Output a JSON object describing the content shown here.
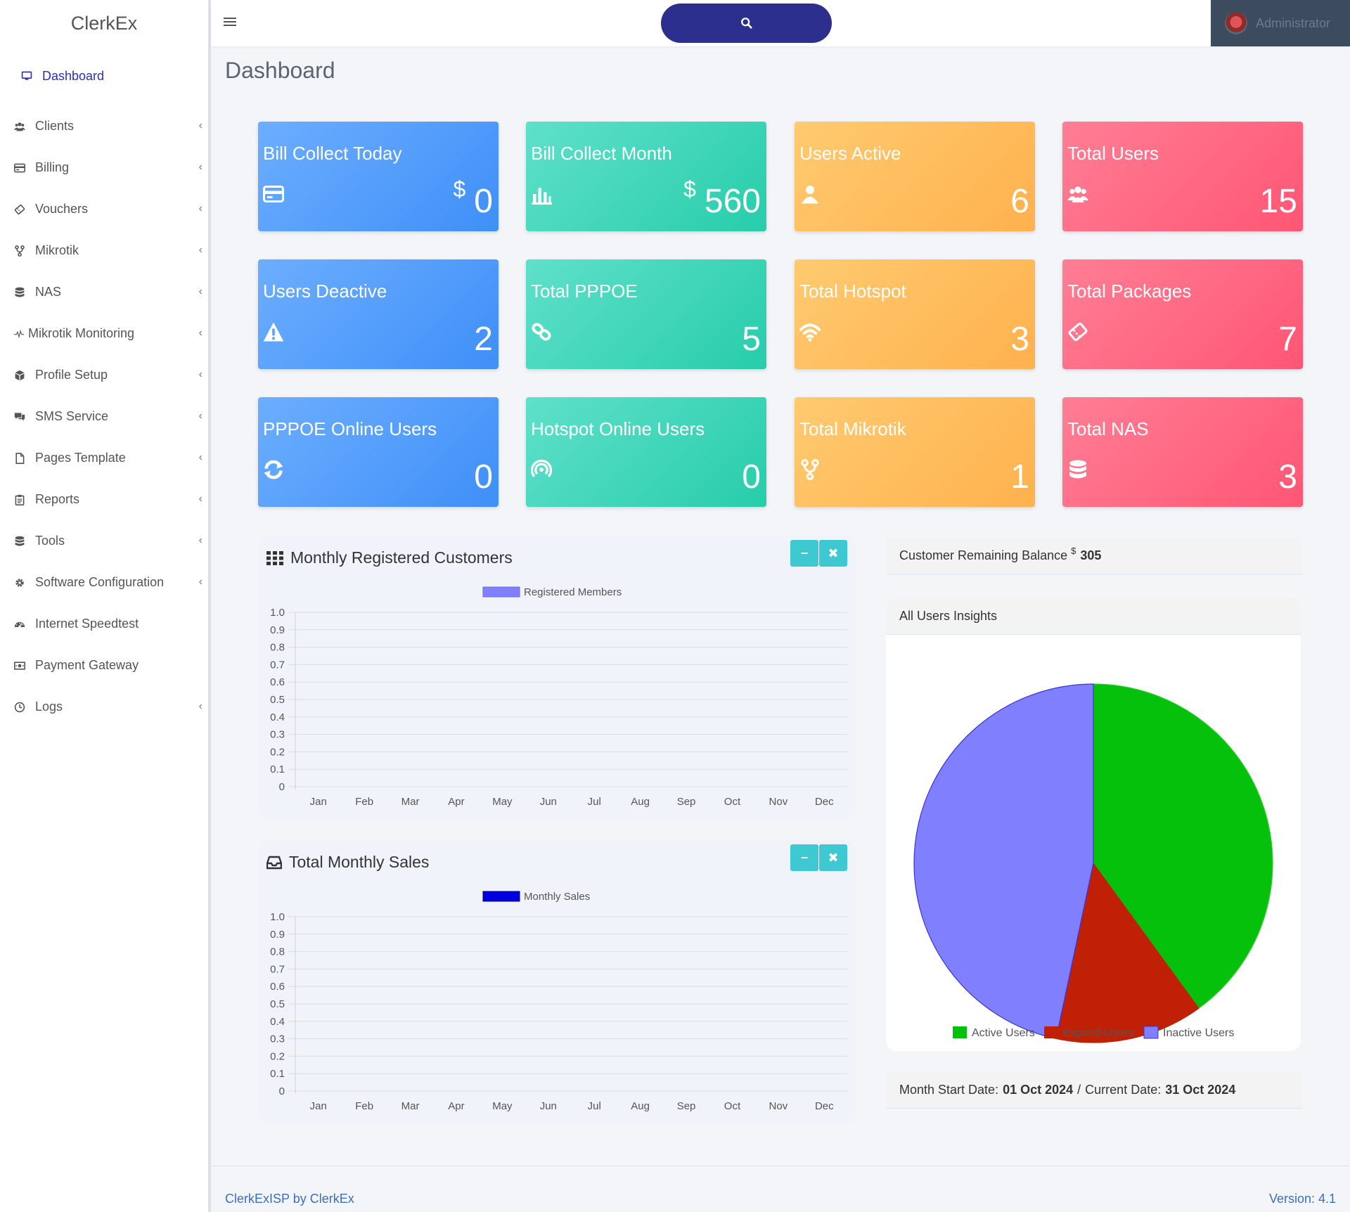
{
  "app": {
    "brand": "ClerkEx",
    "user": "Administrator"
  },
  "sidebar": {
    "items": [
      {
        "label": "Dashboard",
        "icon": "monitor-icon",
        "active": true,
        "has_children": false
      },
      {
        "label": "Clients",
        "icon": "users-icon",
        "has_children": true
      },
      {
        "label": "Billing",
        "icon": "credit-card-icon",
        "has_children": true
      },
      {
        "label": "Vouchers",
        "icon": "ticket-icon",
        "has_children": true
      },
      {
        "label": "Mikrotik",
        "icon": "branch-icon",
        "has_children": true
      },
      {
        "label": "NAS",
        "icon": "database-icon",
        "has_children": true
      },
      {
        "label": "Mikrotik Monitoring",
        "icon": "pulse-icon",
        "has_children": true
      },
      {
        "label": "Profile Setup",
        "icon": "cube-icon",
        "has_children": true
      },
      {
        "label": "SMS Service",
        "icon": "chat-icon",
        "has_children": true
      },
      {
        "label": "Pages Template",
        "icon": "file-icon",
        "has_children": true
      },
      {
        "label": "Reports",
        "icon": "clipboard-icon",
        "has_children": true
      },
      {
        "label": "Tools",
        "icon": "database-icon",
        "has_children": true
      },
      {
        "label": "Software Configuration",
        "icon": "gear-icon",
        "has_children": true
      },
      {
        "label": "Internet Speedtest",
        "icon": "speedometer-icon",
        "has_children": false
      },
      {
        "label": "Payment Gateway",
        "icon": "money-icon",
        "has_children": false
      },
      {
        "label": "Logs",
        "icon": "clock-icon",
        "has_children": true
      }
    ]
  },
  "page": {
    "title": "Dashboard"
  },
  "cards": [
    {
      "title": "Bill Collect Today",
      "currency": "$",
      "value": "0",
      "icon": "credit-card-icon",
      "color": "blue"
    },
    {
      "title": "Bill Collect Month",
      "currency": "$",
      "value": "560",
      "icon": "bar-chart-icon",
      "color": "teal"
    },
    {
      "title": "Users Active",
      "currency": "",
      "value": "6",
      "icon": "user-icon",
      "color": "orange"
    },
    {
      "title": "Total Users",
      "currency": "",
      "value": "15",
      "icon": "users-icon",
      "color": "pink"
    },
    {
      "title": "Users Deactive",
      "currency": "",
      "value": "2",
      "icon": "warning-icon",
      "color": "blue"
    },
    {
      "title": "Total PPPOE",
      "currency": "",
      "value": "5",
      "icon": "link-icon",
      "color": "teal"
    },
    {
      "title": "Total Hotspot",
      "currency": "",
      "value": "3",
      "icon": "wifi-icon",
      "color": "orange"
    },
    {
      "title": "Total Packages",
      "currency": "",
      "value": "7",
      "icon": "ticket-icon",
      "color": "pink"
    },
    {
      "title": "PPPOE Online Users",
      "currency": "",
      "value": "0",
      "icon": "refresh-icon",
      "color": "blue"
    },
    {
      "title": "Hotspot Online Users",
      "currency": "",
      "value": "0",
      "icon": "broadcast-icon",
      "color": "teal"
    },
    {
      "title": "Total Mikrotik",
      "currency": "",
      "value": "1",
      "icon": "branch-icon",
      "color": "orange"
    },
    {
      "title": "Total NAS",
      "currency": "",
      "value": "3",
      "icon": "database-icon",
      "color": "pink"
    }
  ],
  "panels": {
    "registered": {
      "title": "Monthly Registered Customers"
    },
    "sales": {
      "title": "Total Monthly Sales"
    }
  },
  "balance": {
    "label": "Customer Remaining Balance",
    "currency": "$",
    "value": "305"
  },
  "insights": {
    "title": "All Users Insights"
  },
  "dates": {
    "start_label": "Month Start Date:",
    "start": "01 Oct 2024",
    "sep": "/",
    "current_label": "Current Date:",
    "current": "31 Oct 2024"
  },
  "footer": {
    "left": "ClerkExISP by ClerkEx",
    "right": "Version: 4.1"
  },
  "colors": {
    "blue": "#4a98fb",
    "teal": "#32d3b4",
    "orange": "#ffbb5c",
    "pink": "#ff6580",
    "brand": "#2a2fb4",
    "search": "#2c2f8e",
    "tool": "#3ec9d2"
  },
  "chart_data": [
    {
      "type": "bar",
      "legend": [
        "Registered Members"
      ],
      "legend_position": "top",
      "categories": [
        "Jan",
        "Feb",
        "Mar",
        "Apr",
        "May",
        "Jun",
        "Jul",
        "Aug",
        "Sep",
        "Oct",
        "Nov",
        "Dec"
      ],
      "series": [
        {
          "name": "Registered Members",
          "color": "#8080ff",
          "values": [
            0,
            0,
            0,
            0,
            0,
            0,
            0,
            0,
            0,
            0,
            0,
            0
          ]
        }
      ],
      "ylim": [
        0,
        1
      ],
      "yticks": [
        "1.0",
        "0.9",
        "0.8",
        "0.7",
        "0.6",
        "0.5",
        "0.4",
        "0.3",
        "0.2",
        "0.1",
        "0"
      ],
      "grid": true
    },
    {
      "type": "bar",
      "legend": [
        "Monthly Sales"
      ],
      "legend_position": "top",
      "categories": [
        "Jan",
        "Feb",
        "Mar",
        "Apr",
        "May",
        "Jun",
        "Jul",
        "Aug",
        "Sep",
        "Oct",
        "Nov",
        "Dec"
      ],
      "series": [
        {
          "name": "Monthly Sales",
          "color": "#0000e0",
          "values": [
            0,
            0,
            0,
            0,
            0,
            0,
            0,
            0,
            0,
            0,
            0,
            0
          ]
        }
      ],
      "ylim": [
        0,
        1
      ],
      "yticks": [
        "1.0",
        "0.9",
        "0.8",
        "0.7",
        "0.6",
        "0.5",
        "0.4",
        "0.3",
        "0.2",
        "0.1",
        "0"
      ],
      "grid": true
    },
    {
      "type": "pie",
      "legend_position": "bottom",
      "labels": [
        "Active Users",
        "Expired Users",
        "Inactive Users"
      ],
      "values": [
        6,
        2,
        7
      ],
      "colors": [
        "#06c10c",
        "#c02106",
        "#8080ff"
      ]
    }
  ]
}
